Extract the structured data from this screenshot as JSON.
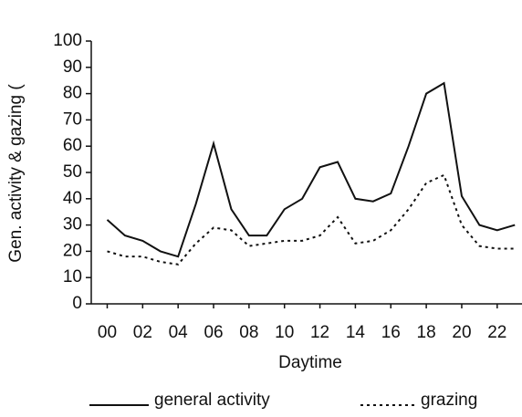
{
  "chart_data": {
    "type": "line",
    "ylabel": "Gen. activity & gazing (",
    "xlabel": "Daytime",
    "x": [
      0,
      1,
      2,
      3,
      4,
      5,
      6,
      7,
      8,
      9,
      10,
      11,
      12,
      13,
      14,
      15,
      16,
      17,
      18,
      19,
      20,
      21,
      22,
      23
    ],
    "series": [
      {
        "name": "general activity",
        "color": "#111111",
        "dash": "solid",
        "values": [
          32,
          26,
          24,
          20,
          18,
          38,
          61,
          36,
          26,
          26,
          36,
          40,
          52,
          54,
          40,
          39,
          42,
          60,
          80,
          84,
          41,
          30,
          28,
          30
        ]
      },
      {
        "name": "grazing",
        "color": "#111111",
        "dash": "dotted",
        "values": [
          20,
          18,
          18,
          16,
          15,
          23,
          29,
          28,
          22,
          23,
          24,
          24,
          26,
          33,
          23,
          24,
          28,
          36,
          46,
          49,
          30,
          22,
          21,
          21
        ]
      }
    ],
    "xlim": [
      -0.9,
      23.4
    ],
    "xticks": [
      {
        "value": 0,
        "label": "00"
      },
      {
        "value": 2,
        "label": "02"
      },
      {
        "value": 4,
        "label": "04"
      },
      {
        "value": 6,
        "label": "06"
      },
      {
        "value": 8,
        "label": "08"
      },
      {
        "value": 10,
        "label": "10"
      },
      {
        "value": 12,
        "label": "12"
      },
      {
        "value": 14,
        "label": "14"
      },
      {
        "value": 16,
        "label": "16"
      },
      {
        "value": 18,
        "label": "18"
      },
      {
        "value": 20,
        "label": "20"
      },
      {
        "value": 22,
        "label": "22"
      }
    ],
    "ylim": [
      0,
      100
    ],
    "yticks": [
      0,
      10,
      20,
      30,
      40,
      50,
      60,
      70,
      80,
      90,
      100
    ],
    "grid": false
  }
}
